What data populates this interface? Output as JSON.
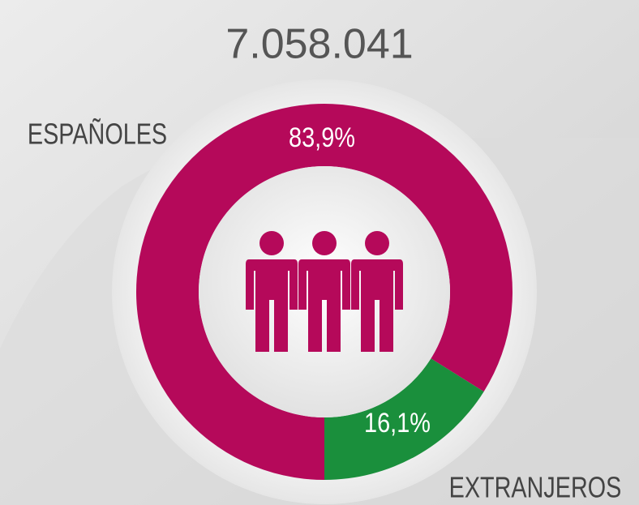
{
  "chart_data": {
    "type": "pie",
    "donut": true,
    "title": "7.058.041",
    "categories": [
      "ESPAÑOLES",
      "EXTRANJEROS"
    ],
    "values": [
      83.9,
      16.1
    ],
    "value_labels": [
      "83,9%",
      "16,1%"
    ],
    "colors": [
      "#b5095a",
      "#1a8f3c"
    ]
  }
}
